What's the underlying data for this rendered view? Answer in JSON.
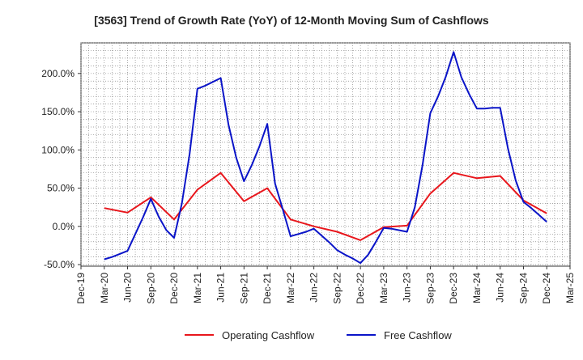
{
  "chart_data": {
    "type": "line",
    "title": "[3563]  Trend of Growth Rate (YoY) of 12-Month Moving Sum of Cashflows",
    "xlabel": "",
    "ylabel": "",
    "x_ticks": [
      "Dec-19",
      "Mar-20",
      "Jun-20",
      "Sep-20",
      "Dec-20",
      "Mar-21",
      "Jun-21",
      "Sep-21",
      "Dec-21",
      "Mar-22",
      "Jun-22",
      "Sep-22",
      "Dec-22",
      "Mar-23",
      "Jun-23",
      "Sep-23",
      "Dec-23",
      "Mar-24",
      "Jun-24",
      "Sep-24",
      "Dec-24",
      "Mar-25"
    ],
    "y_ticks": [
      "-50.0%",
      "0.0%",
      "50.0%",
      "100.0%",
      "150.0%",
      "200.0%"
    ],
    "ylim": [
      -52,
      240
    ],
    "grid": true,
    "legend_position": "bottom",
    "series": [
      {
        "name": "Operating Cashflow",
        "color": "#e8161c",
        "points": [
          [
            "Mar-20",
            24
          ],
          [
            "Jun-20",
            18
          ],
          [
            "Sep-20",
            38
          ],
          [
            "Dec-20",
            9
          ],
          [
            "Mar-21",
            48
          ],
          [
            "Jun-21",
            70
          ],
          [
            "Sep-21",
            33
          ],
          [
            "Dec-21",
            50
          ],
          [
            "Mar-22",
            9
          ],
          [
            "Jun-22",
            0
          ],
          [
            "Sep-22",
            -7
          ],
          [
            "Dec-22",
            -18
          ],
          [
            "Mar-23",
            -1
          ],
          [
            "Jun-23",
            1
          ],
          [
            "Sep-23",
            43
          ],
          [
            "Dec-23",
            70
          ],
          [
            "Mar-24",
            63
          ],
          [
            "Jun-24",
            66
          ],
          [
            "Sep-24",
            34
          ],
          [
            "Dec-24",
            17
          ]
        ]
      },
      {
        "name": "Free Cashflow",
        "color": "#0a14c8",
        "points": [
          [
            "Mar-20",
            -43
          ],
          [
            "Apr-20",
            -40
          ],
          [
            "May-20",
            -36
          ],
          [
            "Jun-20",
            -32
          ],
          [
            "Jul-20",
            -10
          ],
          [
            "Aug-20",
            12
          ],
          [
            "Sep-20",
            36
          ],
          [
            "Oct-20",
            13
          ],
          [
            "Nov-20",
            -5
          ],
          [
            "Dec-20",
            -15
          ],
          [
            "Jan-21",
            30
          ],
          [
            "Feb-21",
            95
          ],
          [
            "Mar-21",
            180
          ],
          [
            "Apr-21",
            184
          ],
          [
            "May-21",
            189
          ],
          [
            "Jun-21",
            194
          ],
          [
            "Jul-21",
            133
          ],
          [
            "Aug-21",
            90
          ],
          [
            "Sep-21",
            59
          ],
          [
            "Oct-21",
            80
          ],
          [
            "Nov-21",
            105
          ],
          [
            "Dec-21",
            134
          ],
          [
            "Jan-22",
            56
          ],
          [
            "Feb-22",
            22
          ],
          [
            "Mar-22",
            -13
          ],
          [
            "Apr-22",
            -10
          ],
          [
            "May-22",
            -7
          ],
          [
            "Jun-22",
            -3
          ],
          [
            "Jul-22",
            -12
          ],
          [
            "Aug-22",
            -21
          ],
          [
            "Sep-22",
            -31
          ],
          [
            "Oct-22",
            -37
          ],
          [
            "Nov-22",
            -42
          ],
          [
            "Dec-22",
            -48
          ],
          [
            "Jan-23",
            -37
          ],
          [
            "Feb-23",
            -20
          ],
          [
            "Mar-23",
            -2
          ],
          [
            "Apr-23",
            -3
          ],
          [
            "May-23",
            -5
          ],
          [
            "Jun-23",
            -7
          ],
          [
            "Jul-23",
            25
          ],
          [
            "Aug-23",
            80
          ],
          [
            "Sep-23",
            148
          ],
          [
            "Oct-23",
            170
          ],
          [
            "Nov-23",
            196
          ],
          [
            "Dec-23",
            228
          ],
          [
            "Jan-24",
            195
          ],
          [
            "Feb-24",
            173
          ],
          [
            "Mar-24",
            154
          ],
          [
            "Apr-24",
            154
          ],
          [
            "May-24",
            155
          ],
          [
            "Jun-24",
            155
          ],
          [
            "Jul-24",
            102
          ],
          [
            "Aug-24",
            60
          ],
          [
            "Sep-24",
            32
          ],
          [
            "Oct-24",
            24
          ],
          [
            "Nov-24",
            15
          ],
          [
            "Dec-24",
            6
          ]
        ]
      }
    ]
  }
}
